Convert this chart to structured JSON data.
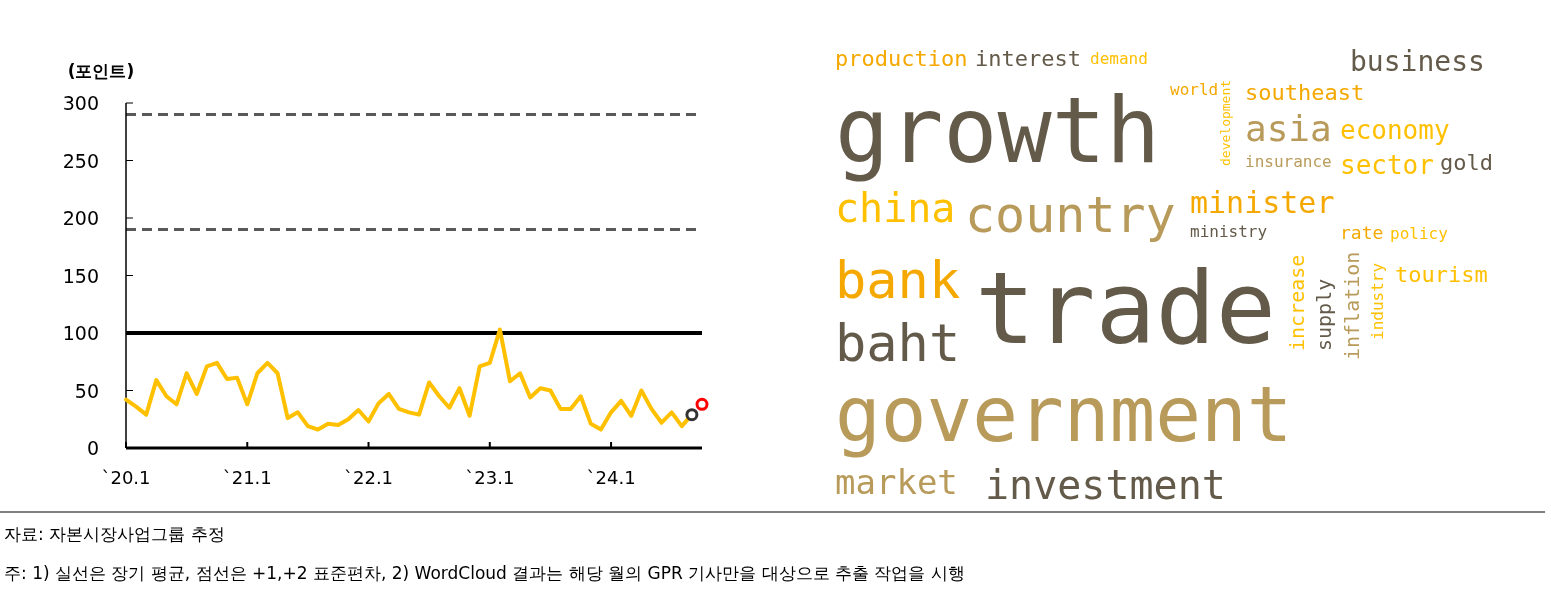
{
  "chart_data": [
    {
      "type": "line",
      "ylabel": "(포인트)",
      "x": [
        "2020-01",
        "2020-02",
        "2020-03",
        "2020-04",
        "2020-05",
        "2020-06",
        "2020-07",
        "2020-08",
        "2020-09",
        "2020-10",
        "2020-11",
        "2020-12",
        "2021-01",
        "2021-02",
        "2021-03",
        "2021-04",
        "2021-05",
        "2021-06",
        "2021-07",
        "2021-08",
        "2021-09",
        "2021-10",
        "2021-11",
        "2021-12",
        "2022-01",
        "2022-02",
        "2022-03",
        "2022-04",
        "2022-05",
        "2022-06",
        "2022-07",
        "2022-08",
        "2022-09",
        "2022-10",
        "2022-11",
        "2022-12",
        "2023-01",
        "2023-02",
        "2023-03",
        "2023-04",
        "2023-05",
        "2023-06",
        "2023-07",
        "2023-08",
        "2023-09",
        "2023-10",
        "2023-11",
        "2023-12",
        "2024-01",
        "2024-02",
        "2024-03",
        "2024-04",
        "2024-05",
        "2024-06",
        "2024-07",
        "2024-08",
        "2024-09"
      ],
      "series": [
        {
          "color": "#ffc000",
          "values": [
            42,
            36,
            29,
            59,
            45,
            38,
            65,
            47,
            71,
            74,
            60,
            61,
            38,
            65,
            74,
            65,
            26,
            31,
            19,
            16,
            21,
            20,
            25,
            33,
            23,
            39,
            47,
            34,
            31,
            29,
            57,
            45,
            35,
            52,
            28,
            71,
            74,
            103,
            58,
            65,
            44,
            52,
            50,
            34,
            34,
            45,
            21,
            16,
            31,
            41,
            28,
            50,
            34,
            22,
            31,
            19,
            29
          ]
        },
        {
          "type": "scatter",
          "marker": "circle",
          "x": [
            "2024-09"
          ],
          "values": [
            29
          ],
          "color": "#333333"
        },
        {
          "type": "scatter",
          "marker": "circle",
          "x": [
            "2024-10"
          ],
          "values": [
            38
          ],
          "color": "#ff0000"
        }
      ],
      "xlim": [
        "2020-01",
        "2024-10"
      ],
      "xticks": [
        {
          "value": "2020-01",
          "label": "`20.1"
        },
        {
          "value": "2021-01",
          "label": "`21.1"
        },
        {
          "value": "2022-01",
          "label": "`22.1"
        },
        {
          "value": "2023-01",
          "label": "`23.1"
        },
        {
          "value": "2024-01",
          "label": "`24.1"
        }
      ],
      "ylim": [
        0,
        300
      ],
      "yticks": [
        0,
        50,
        100,
        150,
        200,
        250,
        300
      ],
      "ref_lines": [
        {
          "axis": "y",
          "value": 100,
          "color": "#000000",
          "line_style": "solid"
        },
        {
          "axis": "y",
          "value": 190,
          "color": "#595959",
          "line_style": "dashed"
        },
        {
          "axis": "y",
          "value": 290,
          "color": "#595959",
          "line_style": "dashed"
        }
      ],
      "grid": false,
      "annotations": [
        "자료: 자본시장사업그룹 추정",
        "주: 1) 실선은 장기 평균, 점선은 +1,+2 표준편차, 2) WordCloud 결과는 해당 월의 GPR 기사만을 대상으로 추출 작업을 시행"
      ]
    },
    {
      "type": "other",
      "categories": [
        "growth",
        "trade",
        "government",
        "investment",
        "country",
        "bank",
        "baht",
        "market",
        "china",
        "minister",
        "asia",
        "economy",
        "business",
        "southeast",
        "sector",
        "production",
        "interest",
        "demand",
        "world",
        "rate",
        "policy",
        "ministry",
        "tourism",
        "gold",
        "insurance",
        "development",
        "increase",
        "supply",
        "inflation",
        "industry"
      ],
      "colors": [
        "#635a4a",
        "#635a4a",
        "#b89b5a",
        "#635a4a",
        "#b89b5a",
        "#f5a800",
        "#635a4a",
        "#b89b5a",
        "#ffc000",
        "#f5a800",
        "#b89b5a",
        "#ffc000",
        "#635a4a",
        "#f5a800",
        "#ffc000",
        "#f5a800",
        "#635a4a",
        "#ffc000",
        "#f5a800",
        "#f5a800",
        "#ffc000",
        "#635a4a",
        "#ffc000",
        "#635a4a",
        "#b89b5a",
        "#ffc000",
        "#ffc000",
        "#635a4a",
        "#b89b5a",
        "#ffc000"
      ]
    }
  ]
}
